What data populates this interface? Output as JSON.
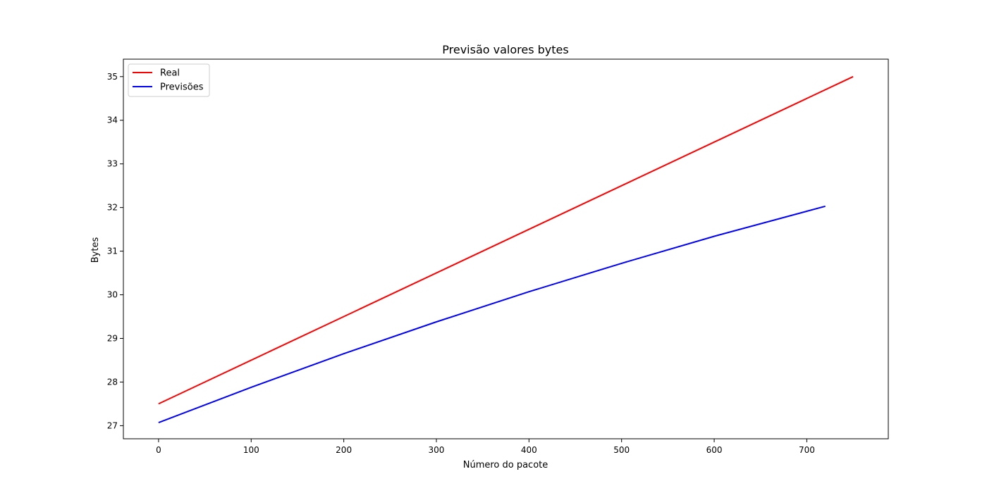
{
  "chart_data": {
    "type": "line",
    "title": "Previsão valores bytes",
    "xlabel": "Número do pacote",
    "ylabel": "Bytes",
    "xlim": [
      -38,
      788
    ],
    "ylim": [
      26.7,
      35.4
    ],
    "xticks": [
      0,
      100,
      200,
      300,
      400,
      500,
      600,
      700
    ],
    "yticks": [
      27,
      28,
      29,
      30,
      31,
      32,
      33,
      34,
      35
    ],
    "grid": false,
    "legend_position": "upper-left",
    "series": [
      {
        "name": "Real",
        "color": "#ff0000",
        "x": [
          0,
          750
        ],
        "y": [
          27.5,
          35.0
        ]
      },
      {
        "name": "Previsões",
        "color": "#0000ff",
        "x": [
          0,
          100,
          200,
          300,
          400,
          500,
          600,
          720
        ],
        "y": [
          27.07,
          27.88,
          28.65,
          29.38,
          30.07,
          30.72,
          31.34,
          32.03
        ]
      }
    ]
  }
}
